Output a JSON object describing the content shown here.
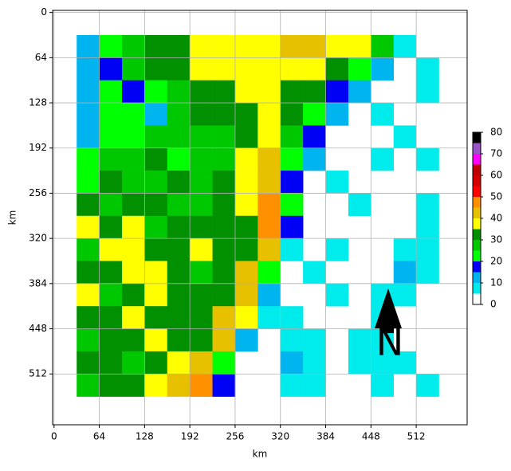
{
  "chart_data": {
    "type": "heatmap",
    "xlabel": "km",
    "ylabel": "km",
    "xlim": [
      -2,
      584
    ],
    "ylim": [
      584,
      -3
    ],
    "xticks": [
      0,
      64,
      128,
      192,
      256,
      320,
      384,
      448,
      512
    ],
    "yticks": [
      0,
      64,
      128,
      192,
      256,
      320,
      384,
      448,
      512
    ],
    "grid": true,
    "x": [
      48,
      80,
      112,
      144,
      176,
      208,
      240,
      272,
      304,
      336,
      368,
      400,
      432,
      464,
      496,
      528
    ],
    "y": [
      48,
      80,
      112,
      144,
      176,
      208,
      240,
      272,
      304,
      336,
      368,
      400,
      432,
      464,
      496,
      528
    ],
    "values": [
      [
        12,
        22,
        28,
        30,
        32,
        36,
        38,
        38,
        36,
        40,
        42,
        38,
        36,
        28,
        8,
        null
      ],
      [
        14,
        18,
        28,
        32,
        30,
        38,
        36,
        38,
        36,
        38,
        36,
        32,
        22,
        14,
        null,
        6
      ],
      [
        14,
        22,
        18,
        24,
        28,
        30,
        32,
        36,
        36,
        34,
        30,
        18,
        12,
        null,
        null,
        6
      ],
      [
        10,
        24,
        22,
        14,
        28,
        32,
        32,
        34,
        36,
        30,
        24,
        14,
        null,
        6,
        null,
        null
      ],
      [
        14,
        24,
        22,
        28,
        28,
        26,
        28,
        30,
        38,
        26,
        16,
        null,
        null,
        null,
        6,
        null
      ],
      [
        22,
        28,
        28,
        30,
        24,
        26,
        28,
        36,
        40,
        22,
        12,
        null,
        null,
        6,
        null,
        6
      ],
      [
        24,
        32,
        28,
        28,
        30,
        28,
        30,
        38,
        44,
        18,
        null,
        6,
        null,
        null,
        null,
        null
      ],
      [
        30,
        28,
        34,
        30,
        28,
        26,
        32,
        36,
        46,
        20,
        null,
        null,
        6,
        null,
        null,
        6
      ],
      [
        36,
        32,
        38,
        28,
        34,
        30,
        32,
        34,
        48,
        16,
        null,
        null,
        null,
        null,
        null,
        6
      ],
      [
        28,
        36,
        38,
        30,
        34,
        36,
        32,
        30,
        42,
        8,
        null,
        6,
        null,
        null,
        8,
        8
      ],
      [
        32,
        30,
        38,
        38,
        30,
        28,
        32,
        40,
        24,
        null,
        6,
        null,
        null,
        null,
        10,
        8
      ],
      [
        38,
        28,
        32,
        36,
        30,
        32,
        34,
        40,
        12,
        null,
        null,
        6,
        null,
        6,
        8,
        null
      ],
      [
        30,
        34,
        38,
        30,
        32,
        30,
        44,
        36,
        8,
        6,
        null,
        null,
        null,
        6,
        null,
        null
      ],
      [
        28,
        30,
        32,
        36,
        34,
        32,
        40,
        14,
        null,
        8,
        8,
        null,
        6,
        8,
        null,
        null
      ],
      [
        30,
        32,
        28,
        32,
        36,
        42,
        22,
        null,
        null,
        10,
        8,
        null,
        8,
        6,
        6,
        null
      ],
      [
        28,
        30,
        32,
        38,
        44,
        46,
        16,
        null,
        null,
        8,
        6,
        null,
        null,
        6,
        null,
        6
      ]
    ],
    "colorbar": {
      "levels": [
        0,
        5,
        10,
        15,
        20,
        25,
        30,
        35,
        40,
        45,
        50,
        55,
        60,
        65,
        70,
        75,
        80
      ],
      "colors": [
        "#ffffff",
        "#00ecec",
        "#00b4f0",
        "#0000f6",
        "#00ff00",
        "#00c800",
        "#009000",
        "#ffff00",
        "#e7c000",
        "#ff9000",
        "#ff0000",
        "#d60000",
        "#c00000",
        "#ff00ff",
        "#9955c9",
        "#000000"
      ],
      "ticks": [
        0,
        10,
        20,
        30,
        40,
        50,
        60,
        70,
        80
      ]
    },
    "north_label": "N"
  }
}
